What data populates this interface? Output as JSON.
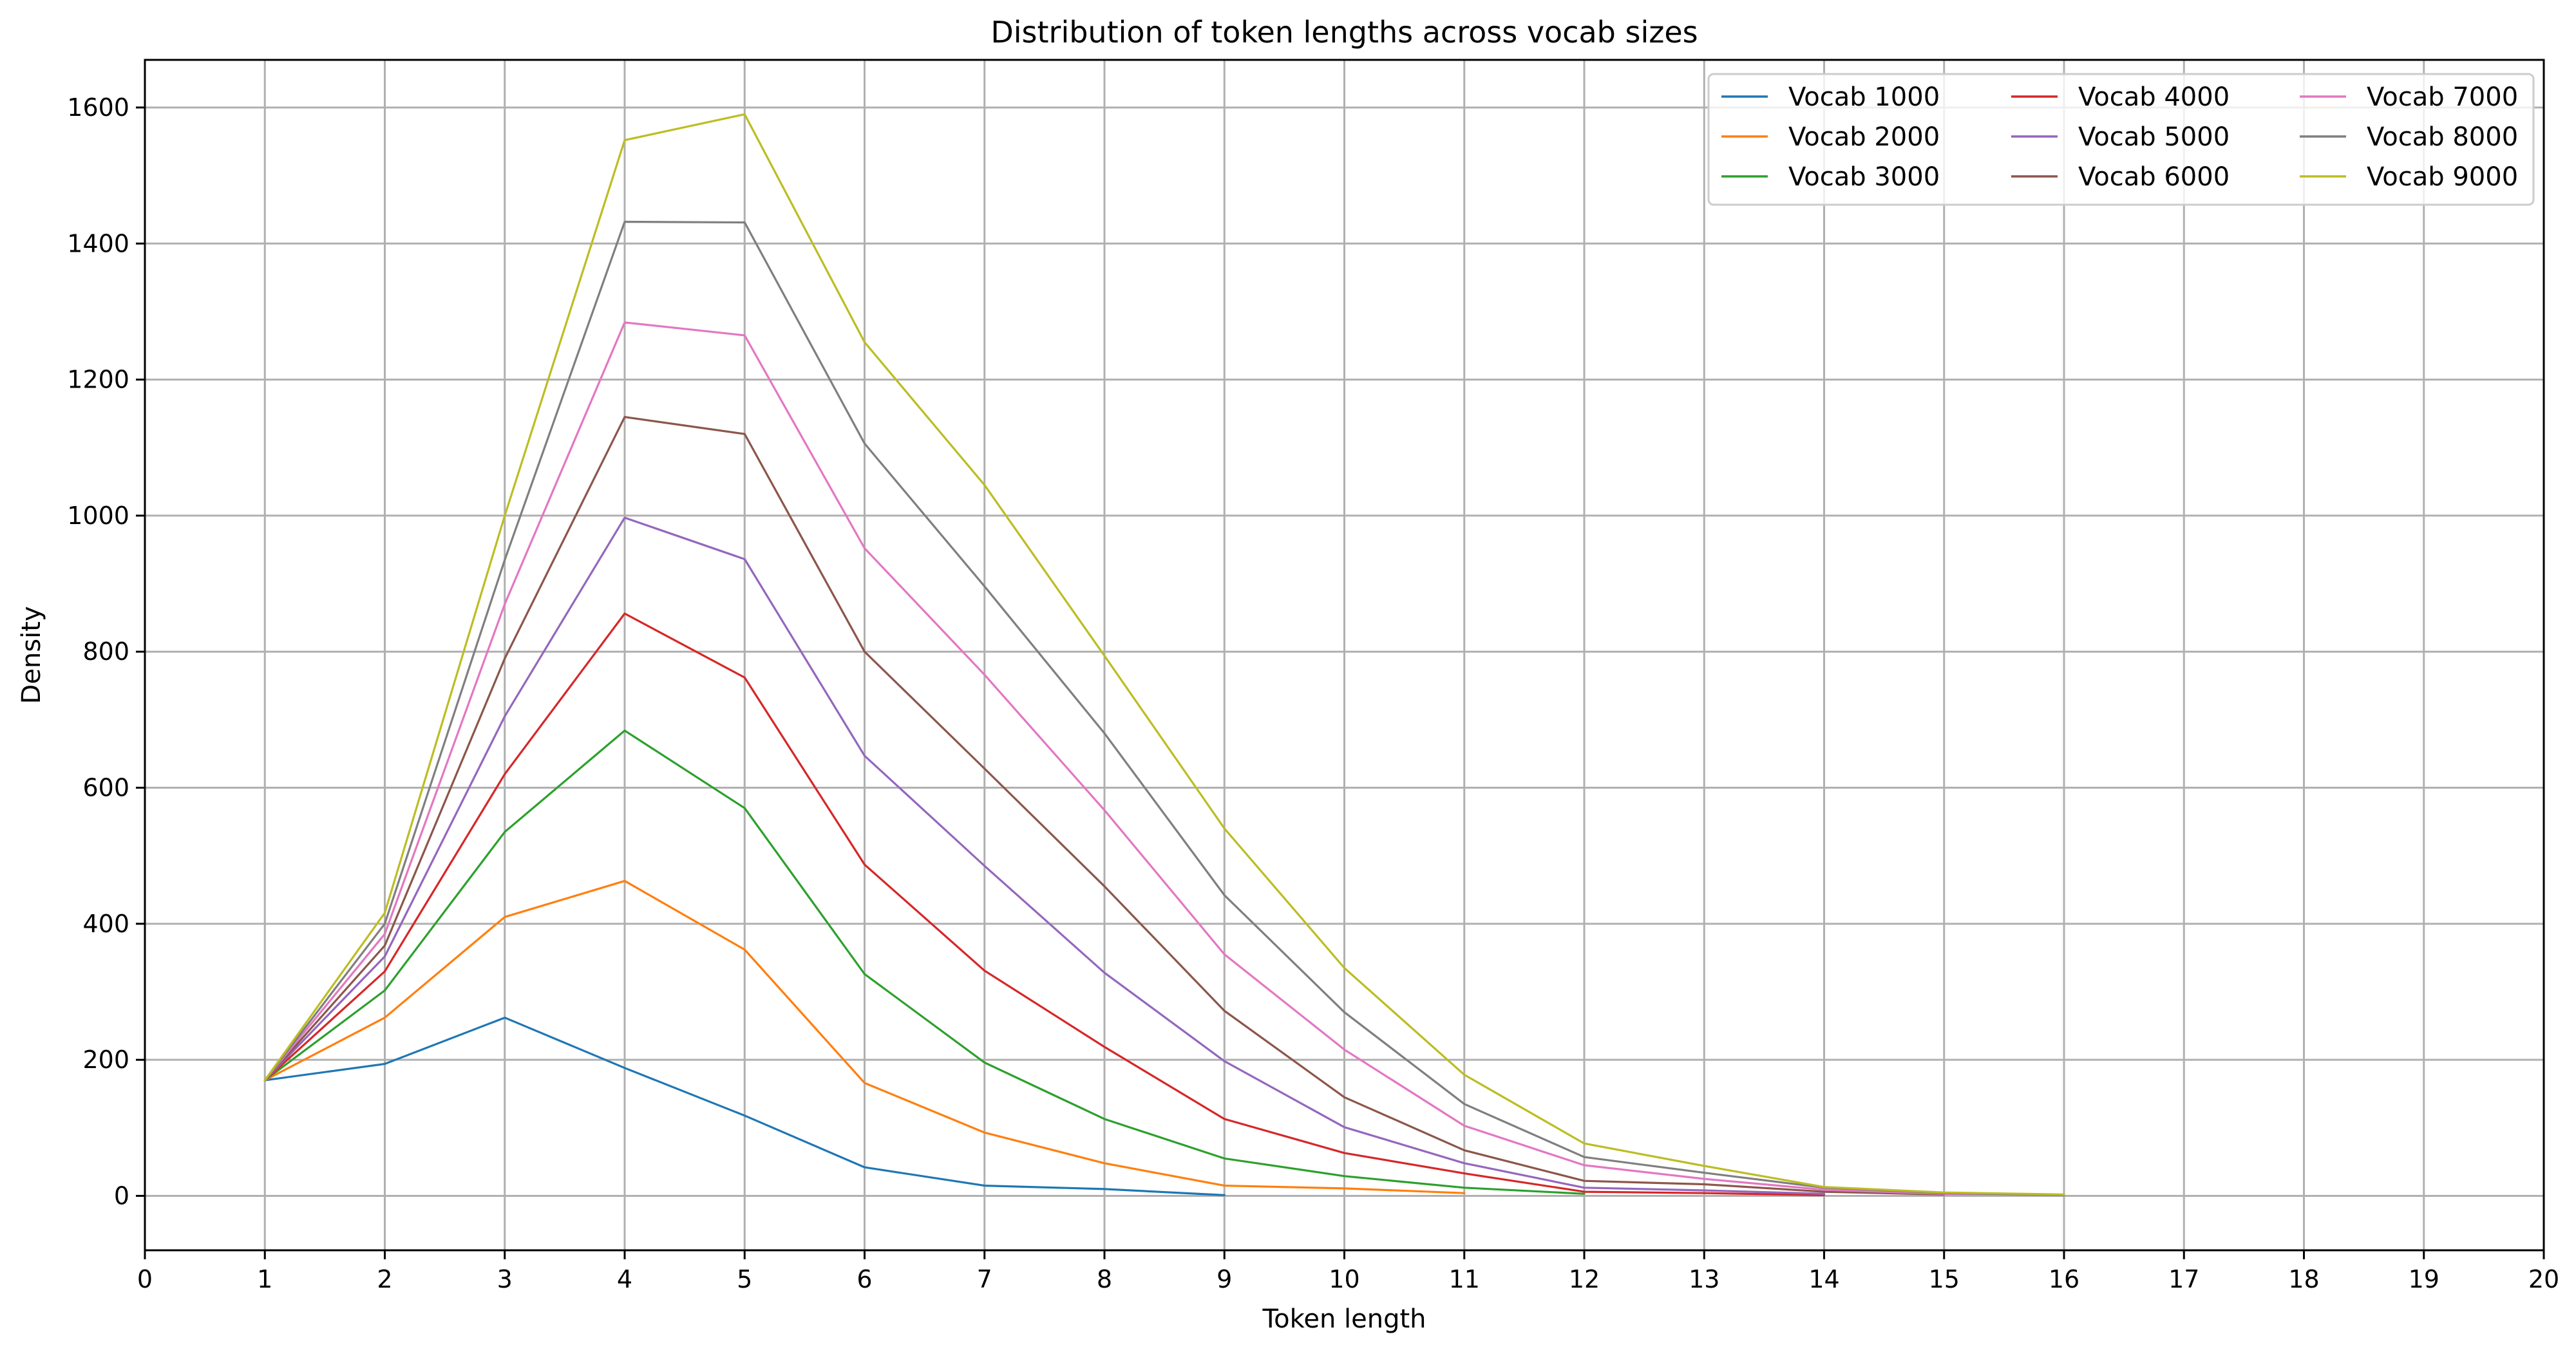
{
  "chart_data": {
    "type": "line",
    "title": "Distribution of token lengths across vocab sizes",
    "xlabel": "Token length",
    "ylabel": "Density",
    "xlim": [
      0,
      20
    ],
    "ylim": [
      -80,
      1670
    ],
    "x_ticks": [
      "0",
      "1",
      "2",
      "3",
      "4",
      "5",
      "6",
      "7",
      "8",
      "9",
      "10",
      "11",
      "12",
      "13",
      "14",
      "15",
      "16",
      "17",
      "18",
      "19",
      "20"
    ],
    "y_ticks": [
      "0",
      "200",
      "400",
      "600",
      "800",
      "1000",
      "1200",
      "1400",
      "1600"
    ],
    "grid": true,
    "legend_position": "top-right",
    "legend_columns": 3,
    "series": [
      {
        "name": "Vocab 1000",
        "color": "#1f77b4",
        "x": [
          1,
          2,
          3,
          4,
          5,
          6,
          7,
          8,
          9
        ],
        "values": [
          170,
          194,
          262,
          188,
          118,
          42,
          15,
          10,
          1
        ]
      },
      {
        "name": "Vocab 2000",
        "color": "#ff7f0e",
        "x": [
          1,
          2,
          3,
          4,
          5,
          6,
          7,
          8,
          9,
          10,
          11
        ],
        "values": [
          170,
          262,
          410,
          463,
          362,
          166,
          93,
          48,
          15,
          11,
          4
        ]
      },
      {
        "name": "Vocab 3000",
        "color": "#2ca02c",
        "x": [
          1,
          2,
          3,
          4,
          5,
          6,
          7,
          8,
          9,
          10,
          11,
          12
        ],
        "values": [
          170,
          302,
          535,
          684,
          570,
          326,
          196,
          113,
          55,
          29,
          12,
          3
        ]
      },
      {
        "name": "Vocab 4000",
        "color": "#d62728",
        "x": [
          1,
          2,
          3,
          4,
          5,
          6,
          7,
          8,
          9,
          10,
          11,
          12,
          13,
          14
        ],
        "values": [
          170,
          330,
          620,
          856,
          762,
          487,
          331,
          219,
          113,
          63,
          33,
          6,
          4,
          1
        ]
      },
      {
        "name": "Vocab 5000",
        "color": "#9467bd",
        "x": [
          1,
          2,
          3,
          4,
          5,
          6,
          7,
          8,
          9,
          10,
          11,
          12,
          13,
          14
        ],
        "values": [
          170,
          352,
          705,
          997,
          936,
          647,
          485,
          328,
          198,
          101,
          48,
          12,
          8,
          3
        ]
      },
      {
        "name": "Vocab 6000",
        "color": "#8c564b",
        "x": [
          1,
          2,
          3,
          4,
          5,
          6,
          7,
          8,
          9,
          10,
          11,
          12,
          13,
          14,
          15
        ],
        "values": [
          170,
          368,
          790,
          1145,
          1120,
          800,
          628,
          455,
          272,
          145,
          67,
          22,
          17,
          6,
          2
        ]
      },
      {
        "name": "Vocab 7000",
        "color": "#e377c2",
        "x": [
          1,
          2,
          3,
          4,
          5,
          6,
          7,
          8,
          9,
          10,
          11,
          12,
          13,
          14,
          15,
          16
        ],
        "values": [
          170,
          385,
          870,
          1284,
          1265,
          952,
          766,
          567,
          355,
          215,
          103,
          45,
          25,
          9,
          3,
          1
        ]
      },
      {
        "name": "Vocab 8000",
        "color": "#7f7f7f",
        "x": [
          1,
          2,
          3,
          4,
          5,
          6,
          7,
          8,
          9,
          10,
          11,
          12,
          13,
          14,
          15,
          16
        ],
        "values": [
          170,
          400,
          935,
          1432,
          1431,
          1106,
          896,
          680,
          442,
          270,
          135,
          57,
          34,
          12,
          4,
          1
        ]
      },
      {
        "name": "Vocab 9000",
        "color": "#bcbd22",
        "x": [
          1,
          2,
          3,
          4,
          5,
          6,
          7,
          8,
          9,
          10,
          11,
          12,
          13,
          14,
          15,
          16
        ],
        "values": [
          170,
          416,
          1000,
          1552,
          1590,
          1255,
          1045,
          794,
          540,
          335,
          178,
          77,
          44,
          13,
          5,
          2
        ]
      }
    ]
  }
}
